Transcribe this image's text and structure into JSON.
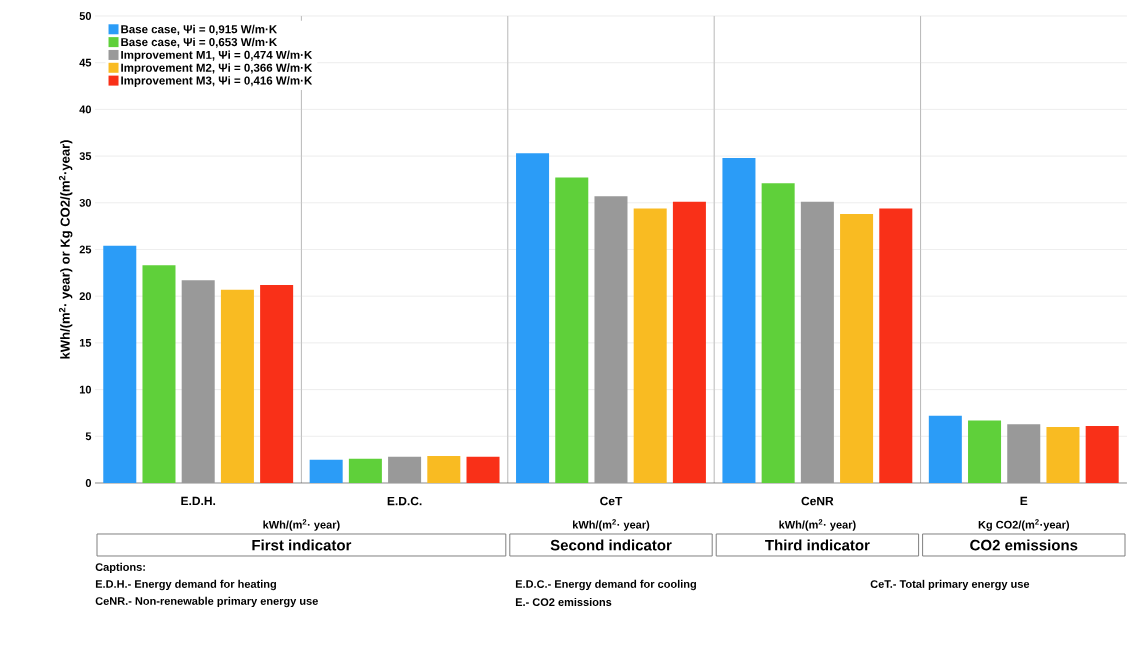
{
  "chart_data": {
    "type": "bar",
    "ylabel": "kWh/(m$^{2}$· year) or Kg CO2/(m$^{2}$·year)",
    "categories": [
      "E.D.H.",
      "E.D.C.",
      "CeT",
      "CeNR",
      "E"
    ],
    "series": [
      {
        "name": "Base case, Ψi = 0,915 W/m·K",
        "color": "#2b9cf7",
        "values": [
          25.4,
          2.5,
          35.3,
          34.8,
          7.2
        ]
      },
      {
        "name": "Base case, Ψi = 0,653 W/m·K",
        "color": "#5fd03a",
        "values": [
          23.3,
          2.6,
          32.7,
          32.1,
          6.7
        ]
      },
      {
        "name": "Improvement M1, Ψi = 0,474 W/m·K",
        "color": "#999999",
        "values": [
          21.7,
          2.8,
          30.7,
          30.1,
          6.3
        ]
      },
      {
        "name": "Improvement M2, Ψi = 0,366 W/m·K",
        "color": "#f9bb22",
        "values": [
          20.7,
          2.9,
          29.4,
          28.8,
          6.0
        ]
      },
      {
        "name": "Improvement M3, Ψi = 0,416 W/m·K",
        "color": "#f93018",
        "values": [
          21.2,
          2.8,
          30.1,
          29.4,
          6.1
        ]
      }
    ],
    "ylim": [
      0,
      50
    ],
    "yticks": [
      0,
      5,
      10,
      15,
      20,
      25,
      30,
      35,
      40,
      45,
      50
    ],
    "grid": "y",
    "legend": "top left",
    "annotations": [
      "kWh/(m$^{2}$· year)",
      "kWh/(m$^{2}$· year)",
      "kWh/(m$^{2}$· year)",
      "Kg CO2/(m$^{2}$·year)",
      "First indicator",
      "Second indicator",
      "Third indicator",
      "CO2 emissions",
      "Captions:",
      "E.D.H.- Energy demand for heating",
      "E.D.C.- Energy demand for cooling",
      "CeT.- Total primary energy use",
      "CeNR.- Non-renewable primary energy use",
      "E.- CO2 emissions"
    ]
  }
}
